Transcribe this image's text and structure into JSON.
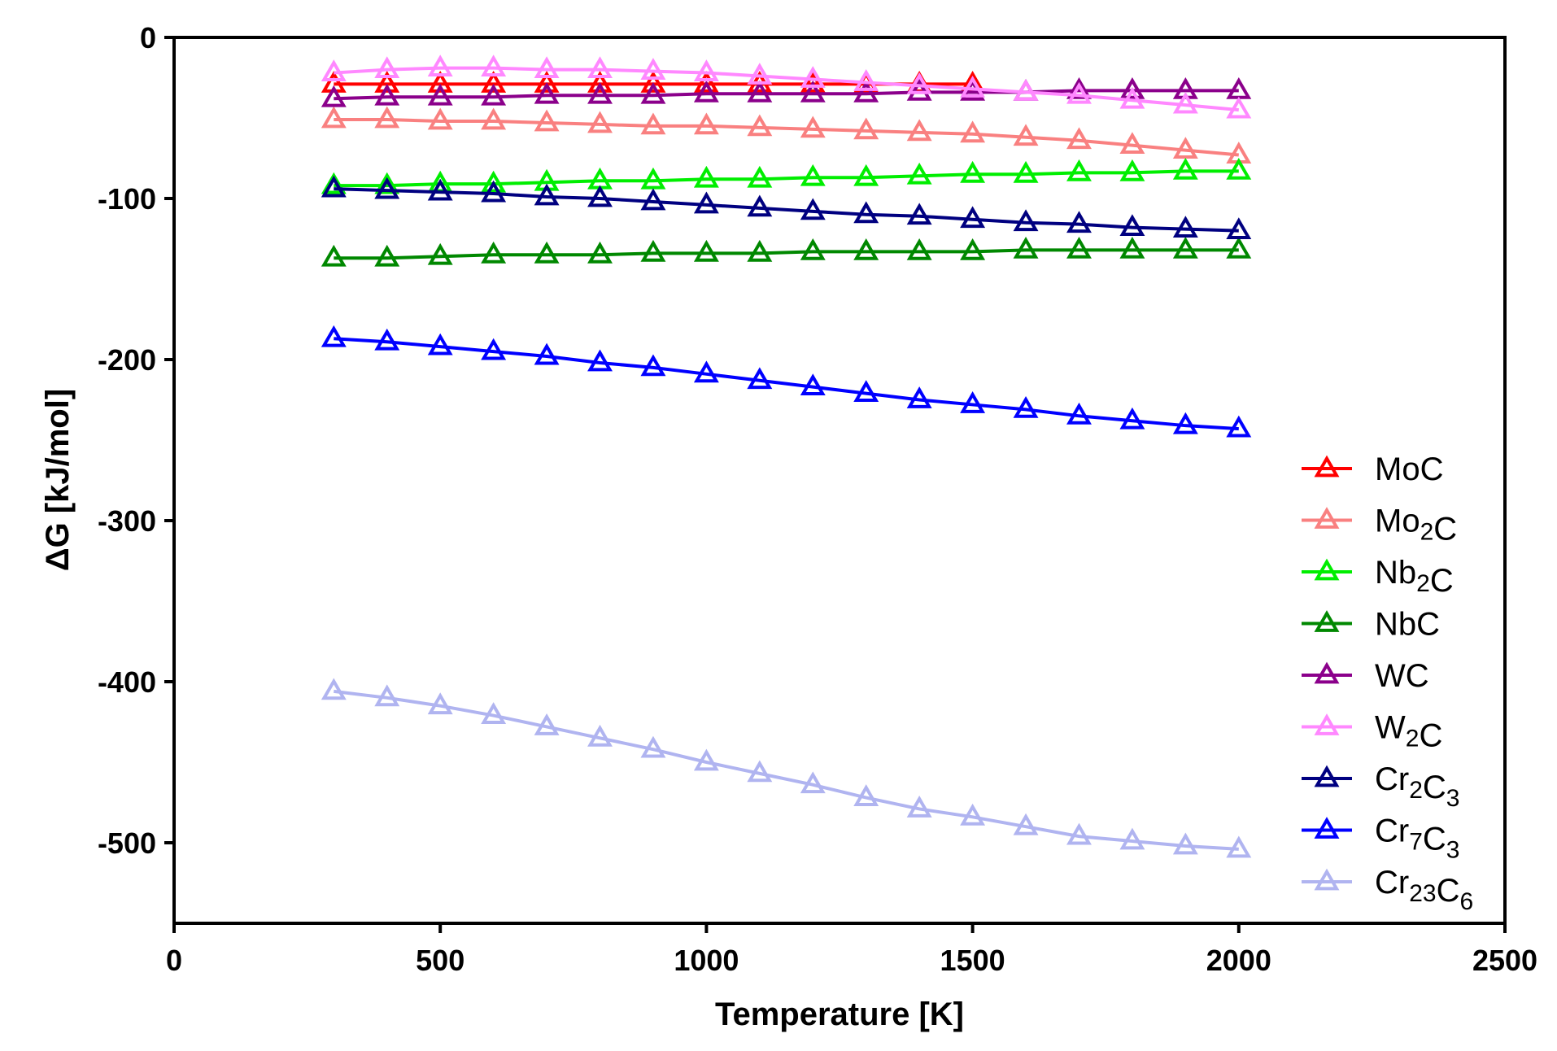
{
  "chart_data": {
    "type": "line",
    "title": "",
    "xlabel": "Temperature [K]",
    "ylabel": "ΔG [kJ/mol]",
    "xlim": [
      0,
      2500
    ],
    "ylim": [
      -550,
      0
    ],
    "xticks": [
      0,
      500,
      1000,
      1500,
      2000,
      2500
    ],
    "yticks": [
      0,
      -100,
      -200,
      -300,
      -400,
      -500
    ],
    "xtick_labels": [
      "0",
      "500",
      "1000",
      "1500",
      "2000",
      "2500"
    ],
    "ytick_labels": [
      "0",
      "-100",
      "-200",
      "-300",
      "-400",
      "-500"
    ],
    "legend_position": "lower-right",
    "marker": "open-triangle",
    "series": [
      {
        "name": "MoC",
        "label_parts": [
          [
            "Mo",
            ""
          ],
          [
            "C",
            ""
          ]
        ],
        "color": "#ff0000",
        "x": [
          300,
          400,
          500,
          600,
          700,
          800,
          900,
          1000,
          1100,
          1200,
          1300,
          1400,
          1500
        ],
        "y": [
          -29,
          -29,
          -29,
          -29,
          -29,
          -29,
          -29,
          -29,
          -29,
          -29,
          -29,
          -29,
          -29
        ]
      },
      {
        "name": "Mo2C",
        "label_parts": [
          [
            "Mo",
            "2"
          ],
          [
            "C",
            ""
          ]
        ],
        "color": "#f98080",
        "x": [
          300,
          400,
          500,
          600,
          700,
          800,
          900,
          1000,
          1100,
          1200,
          1300,
          1400,
          1500,
          1600,
          1700,
          1800,
          1900,
          2000
        ],
        "y": [
          -51,
          -51,
          -52,
          -52,
          -53,
          -54,
          -55,
          -55,
          -56,
          -57,
          -58,
          -59,
          -60,
          -62,
          -64,
          -67,
          -70,
          -73
        ]
      },
      {
        "name": "Nb2C",
        "label_parts": [
          [
            "Nb",
            "2"
          ],
          [
            "C",
            ""
          ]
        ],
        "color": "#00ee00",
        "x": [
          300,
          400,
          500,
          600,
          700,
          800,
          900,
          1000,
          1100,
          1200,
          1300,
          1400,
          1500,
          1600,
          1700,
          1800,
          1900,
          2000
        ],
        "y": [
          -92,
          -92,
          -91,
          -91,
          -90,
          -89,
          -89,
          -88,
          -88,
          -87,
          -87,
          -86,
          -85,
          -85,
          -84,
          -84,
          -83,
          -83
        ]
      },
      {
        "name": "NbC",
        "label_parts": [
          [
            "NbC",
            ""
          ]
        ],
        "color": "#008800",
        "x": [
          300,
          400,
          500,
          600,
          700,
          800,
          900,
          1000,
          1100,
          1200,
          1300,
          1400,
          1500,
          1600,
          1700,
          1800,
          1900,
          2000
        ],
        "y": [
          -137,
          -137,
          -136,
          -135,
          -135,
          -135,
          -134,
          -134,
          -134,
          -133,
          -133,
          -133,
          -133,
          -132,
          -132,
          -132,
          -132,
          -132
        ]
      },
      {
        "name": "WC",
        "label_parts": [
          [
            "WC",
            ""
          ]
        ],
        "color": "#8b008b",
        "x": [
          300,
          400,
          500,
          600,
          700,
          800,
          900,
          1000,
          1100,
          1200,
          1300,
          1400,
          1500,
          1600,
          1700,
          1800,
          1900,
          2000
        ],
        "y": [
          -38,
          -37,
          -37,
          -37,
          -36,
          -36,
          -36,
          -35,
          -35,
          -35,
          -35,
          -34,
          -34,
          -34,
          -33,
          -33,
          -33,
          -33
        ]
      },
      {
        "name": "W2C",
        "label_parts": [
          [
            "W",
            "2"
          ],
          [
            "C",
            ""
          ]
        ],
        "color": "#ff88ff",
        "x": [
          300,
          400,
          500,
          600,
          700,
          800,
          900,
          1000,
          1100,
          1200,
          1300,
          1400,
          1500,
          1600,
          1700,
          1800,
          1900,
          2000
        ],
        "y": [
          -22,
          -20,
          -19,
          -19,
          -20,
          -20,
          -21,
          -22,
          -24,
          -26,
          -28,
          -30,
          -32,
          -34,
          -36,
          -39,
          -42,
          -45
        ]
      },
      {
        "name": "Cr2C3",
        "label_parts": [
          [
            "Cr",
            "2"
          ],
          [
            "C",
            "3"
          ]
        ],
        "color": "#000080",
        "x": [
          300,
          400,
          500,
          600,
          700,
          800,
          900,
          1000,
          1100,
          1200,
          1300,
          1400,
          1500,
          1600,
          1700,
          1800,
          1900,
          2000
        ],
        "y": [
          -94,
          -95,
          -96,
          -97,
          -99,
          -100,
          -102,
          -104,
          -106,
          -108,
          -110,
          -111,
          -113,
          -115,
          -116,
          -118,
          -119,
          -120
        ]
      },
      {
        "name": "Cr7C3",
        "label_parts": [
          [
            "Cr",
            "7"
          ],
          [
            "C",
            "3"
          ]
        ],
        "color": "#0000ff",
        "x": [
          300,
          400,
          500,
          600,
          700,
          800,
          900,
          1000,
          1100,
          1200,
          1300,
          1400,
          1500,
          1600,
          1700,
          1800,
          1900,
          2000
        ],
        "y": [
          -187,
          -189,
          -192,
          -195,
          -198,
          -202,
          -205,
          -209,
          -213,
          -217,
          -221,
          -225,
          -228,
          -231,
          -235,
          -238,
          -241,
          -243
        ]
      },
      {
        "name": "Cr23C6",
        "label_parts": [
          [
            "Cr",
            "23"
          ],
          [
            "C",
            "6"
          ]
        ],
        "color": "#b0b4f0",
        "x": [
          300,
          400,
          500,
          600,
          700,
          800,
          900,
          1000,
          1100,
          1200,
          1300,
          1400,
          1500,
          1600,
          1700,
          1800,
          1900,
          2000
        ],
        "y": [
          -406,
          -410,
          -415,
          -421,
          -428,
          -435,
          -442,
          -450,
          -457,
          -464,
          -472,
          -479,
          -484,
          -490,
          -496,
          -499,
          -502,
          -504
        ]
      }
    ]
  }
}
